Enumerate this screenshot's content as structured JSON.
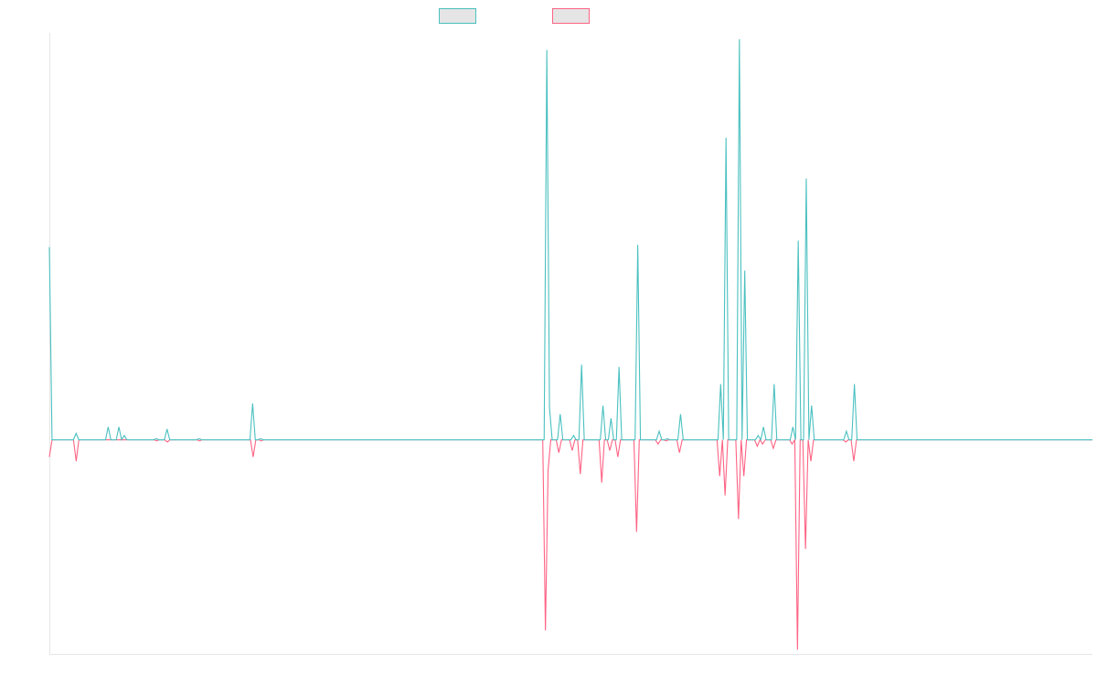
{
  "chart_data": {
    "type": "line",
    "title": "",
    "xlabel": "",
    "ylabel": "",
    "grid": false,
    "legend_placement": "top-center",
    "x_start": 1,
    "ylim": [
      -1.0,
      1.9
    ],
    "series": [
      {
        "color": "#4bc0c0",
        "values": [
          0.9,
          0,
          0,
          0,
          0,
          0,
          0,
          0,
          0,
          0,
          0.03,
          0,
          0,
          0,
          0,
          0,
          0,
          0,
          0,
          0,
          0,
          0,
          0.06,
          0,
          0,
          0,
          0.06,
          0,
          0.02,
          0,
          0,
          0,
          0,
          0,
          0,
          0,
          0,
          0,
          0,
          0,
          0.005,
          0,
          0,
          0,
          0.05,
          0,
          0,
          0,
          0,
          0,
          0,
          0,
          0,
          0,
          0,
          0,
          0.005,
          0,
          0,
          0,
          0,
          0,
          0,
          0,
          0,
          0,
          0,
          0,
          0,
          0,
          0,
          0,
          0,
          0,
          0,
          0,
          0.17,
          0,
          0,
          0.005,
          0,
          0,
          0,
          0,
          0,
          0,
          0,
          0,
          0,
          0,
          0,
          0,
          0,
          0,
          0,
          0,
          0,
          0,
          0,
          0,
          0,
          0,
          0,
          0,
          0,
          0,
          0,
          0,
          0,
          0,
          0,
          0,
          0,
          0,
          0,
          0,
          0,
          0,
          0,
          0,
          0,
          0,
          0,
          0,
          0,
          0,
          0,
          0,
          0,
          0,
          0,
          0,
          0,
          0,
          0,
          0,
          0,
          0,
          0,
          0,
          0,
          0,
          0,
          0,
          0,
          0,
          0,
          0,
          0,
          0,
          0,
          0,
          0,
          0,
          0,
          0,
          0,
          0,
          0,
          0,
          0,
          0,
          0,
          0,
          0,
          0,
          0,
          0,
          0,
          0,
          0,
          0,
          0,
          0,
          0,
          0,
          0,
          0,
          0,
          0,
          0,
          0,
          0,
          0,
          0,
          0,
          1.82,
          0.15,
          0,
          0,
          0,
          0.12,
          0,
          0,
          0,
          0,
          0.02,
          0,
          0,
          0.35,
          0,
          0,
          0,
          0,
          0,
          0,
          0,
          0.16,
          0,
          0,
          0.1,
          0,
          0,
          0.34,
          0,
          0,
          0,
          0,
          0,
          0,
          0.91,
          0,
          0,
          0,
          0,
          0,
          0,
          0,
          0.04,
          0,
          0,
          0.005,
          0,
          0,
          0,
          0,
          0.12,
          0,
          0,
          0,
          0,
          0,
          0,
          0,
          0,
          0,
          0,
          0,
          0,
          0,
          0,
          0.26,
          0,
          1.41,
          0,
          0,
          0,
          0,
          1.87,
          0,
          0.79,
          0,
          0,
          0,
          0,
          0.02,
          0,
          0.06,
          0,
          0,
          0,
          0.26,
          0,
          0,
          0,
          0,
          0,
          0,
          0.06,
          0,
          0.93,
          0,
          0,
          1.22,
          0,
          0.16,
          0,
          0,
          0,
          0,
          0,
          0,
          0,
          0,
          0,
          0,
          0,
          0,
          0.04,
          0,
          0,
          0.26,
          0,
          0,
          0,
          0,
          0,
          0,
          0,
          0,
          0,
          0,
          0,
          0,
          0,
          0,
          0,
          0,
          0,
          0,
          0,
          0,
          0,
          0,
          0,
          0,
          0,
          0,
          0,
          0,
          0,
          0,
          0,
          0,
          0,
          0,
          0,
          0,
          0,
          0,
          0,
          0,
          0,
          0,
          0,
          0,
          0,
          0,
          0,
          0,
          0,
          0,
          0,
          0,
          0,
          0,
          0,
          0,
          0,
          0,
          0,
          0,
          0,
          0,
          0,
          0,
          0,
          0,
          0,
          0,
          0,
          0,
          0,
          0,
          0,
          0,
          0,
          0,
          0,
          0,
          0,
          0,
          0,
          0,
          0,
          0,
          0,
          0,
          0,
          0,
          0
        ]
      },
      {
        "color": "#ff6384",
        "values": [
          -0.08,
          0,
          0,
          0,
          0,
          0,
          0,
          0,
          0,
          0,
          -0.1,
          0,
          0,
          0,
          0,
          0,
          0,
          0,
          0,
          0,
          0,
          0,
          0,
          0,
          0,
          0,
          0,
          0,
          0,
          0,
          0,
          0,
          0,
          0,
          0,
          0,
          0,
          0,
          0,
          0,
          -0.005,
          0,
          0,
          0,
          -0.01,
          0,
          0,
          0,
          0,
          0,
          0,
          0,
          0,
          0,
          0,
          0,
          -0.005,
          0,
          0,
          0,
          0,
          0,
          0,
          0,
          0,
          0,
          0,
          0,
          0,
          0,
          0,
          0,
          0,
          0,
          0,
          0,
          -0.08,
          0,
          0,
          -0.005,
          0,
          0,
          0,
          0,
          0,
          0,
          0,
          0,
          0,
          0,
          0,
          0,
          0,
          0,
          0,
          0,
          0,
          0,
          0,
          0,
          0,
          0,
          0,
          0,
          0,
          0,
          0,
          0,
          0,
          0,
          0,
          0,
          0,
          0,
          0,
          0,
          0,
          0,
          0,
          0,
          0,
          0,
          0,
          0,
          0,
          0,
          0,
          0,
          0,
          0,
          0,
          0,
          0,
          0,
          0,
          0,
          0,
          0,
          0,
          0,
          0,
          0,
          0,
          0,
          0,
          0,
          0,
          0,
          0,
          0,
          0,
          0,
          0,
          0,
          0,
          0,
          0,
          0,
          0,
          0,
          0,
          0,
          0,
          0,
          0,
          0,
          0,
          0,
          0,
          0,
          0,
          0,
          0,
          0,
          0,
          0,
          0,
          0,
          0,
          0,
          0,
          0,
          0,
          0,
          0,
          -0.89,
          -0.14,
          0,
          0,
          0,
          -0.06,
          0,
          0,
          0,
          0,
          -0.05,
          0,
          0,
          -0.16,
          0,
          0,
          0,
          0,
          0,
          0,
          0,
          -0.2,
          0,
          0,
          -0.05,
          0,
          0,
          -0.08,
          0,
          0,
          0,
          0,
          0,
          0,
          -0.43,
          0,
          0,
          0,
          0,
          0,
          0,
          0,
          -0.02,
          0,
          0,
          -0.005,
          0,
          0,
          0,
          0,
          -0.06,
          0,
          0,
          0,
          0,
          0,
          0,
          0,
          0,
          0,
          0,
          0,
          0,
          0,
          0,
          -0.17,
          0,
          -0.26,
          0,
          0,
          0,
          0,
          -0.37,
          0,
          -0.17,
          0,
          0,
          0,
          0,
          -0.03,
          0,
          -0.02,
          0,
          0,
          0,
          -0.04,
          0,
          0,
          0,
          0,
          0,
          0,
          -0.02,
          0,
          -0.98,
          0,
          0,
          -0.51,
          0,
          -0.1,
          0,
          0,
          0,
          0,
          0,
          0,
          0,
          0,
          0,
          0,
          0,
          0,
          -0.01,
          0,
          0,
          -0.1,
          0,
          0,
          0,
          0,
          0,
          0,
          0,
          0,
          0,
          0,
          0,
          0,
          0,
          0,
          0,
          0,
          0,
          0,
          0,
          0,
          0,
          0,
          0,
          0,
          0,
          0,
          0,
          0,
          0,
          0,
          0,
          0,
          0,
          0,
          0,
          0,
          0,
          0,
          0,
          0,
          0,
          0,
          0,
          0,
          0,
          0,
          0,
          0,
          0,
          0,
          0,
          0,
          0,
          0,
          0,
          0,
          0,
          0,
          0,
          0,
          0,
          0,
          0,
          0,
          0,
          0,
          0,
          0,
          0,
          0,
          0,
          0,
          0,
          0,
          0,
          0,
          0,
          0,
          0,
          0,
          0,
          0,
          0,
          0,
          0,
          0,
          0,
          0,
          0
        ]
      }
    ],
    "legend_swatch_fill": "#e5e5e5"
  }
}
